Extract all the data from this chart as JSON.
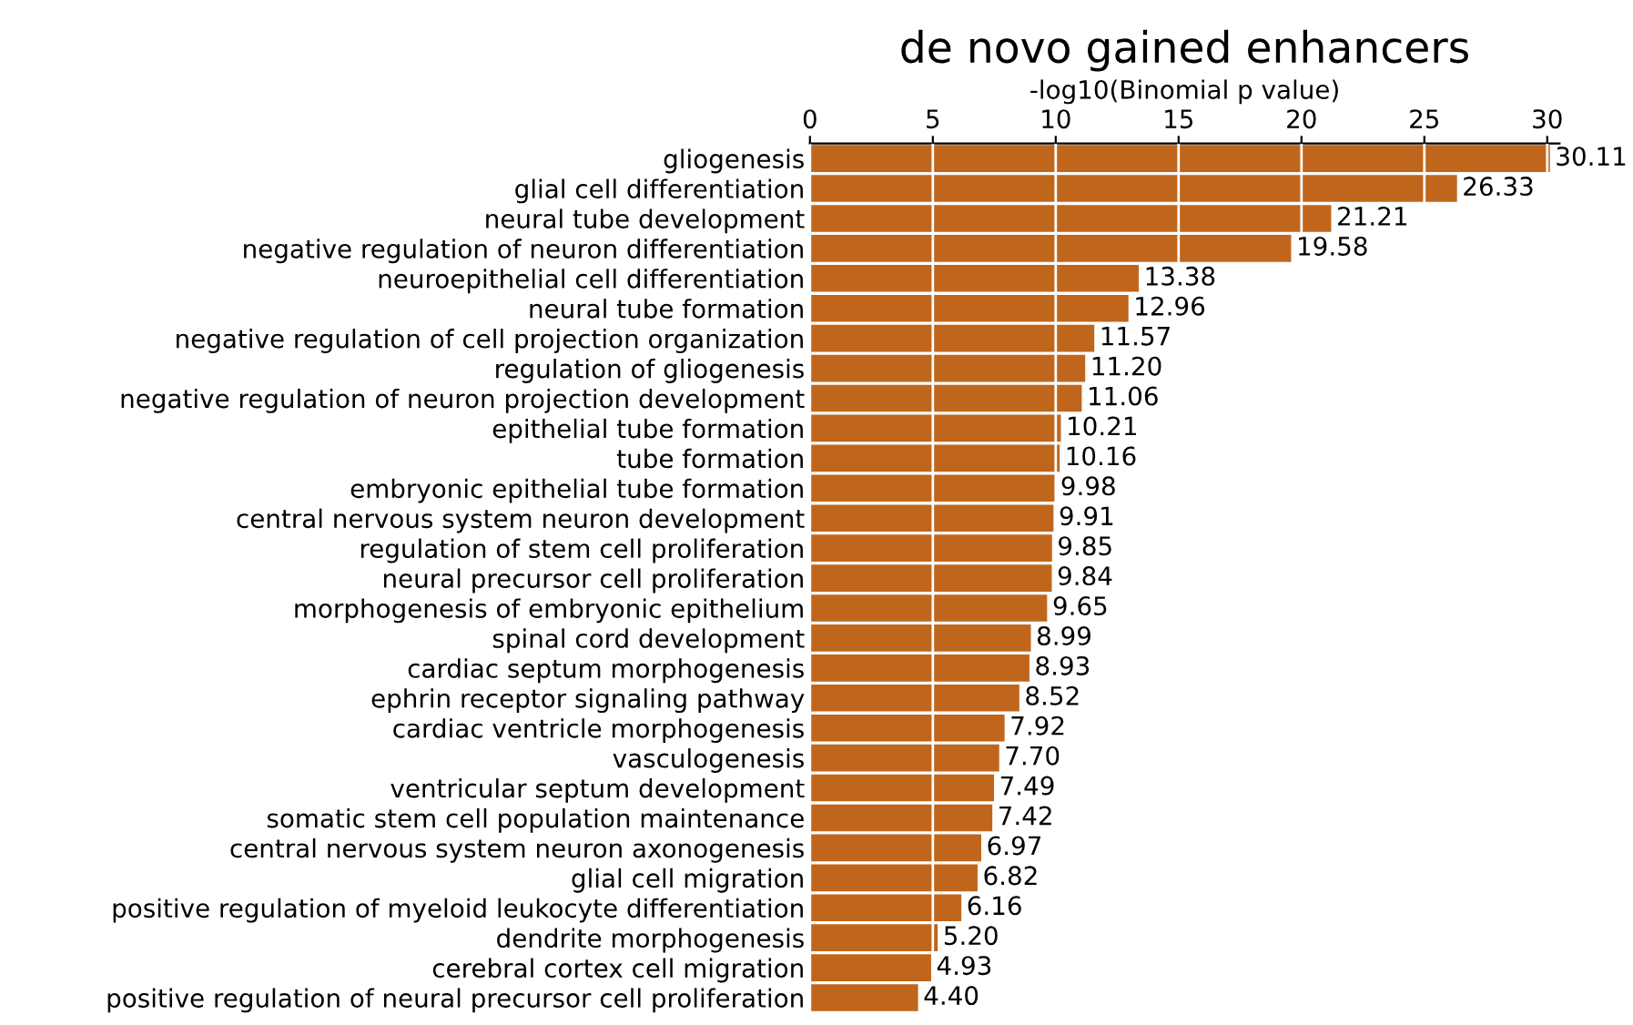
{
  "chart_data": {
    "type": "bar",
    "orientation": "horizontal",
    "title": "de novo gained enhancers",
    "xlabel": "-log10(Binomial p value)",
    "categories": [
      "gliogenesis",
      "glial cell differentiation",
      "neural tube development",
      "negative regulation of neuron differentiation",
      "neuroepithelial cell differentiation",
      "neural tube formation",
      "negative regulation of cell projection organization",
      "regulation of gliogenesis",
      "negative regulation of neuron projection development",
      "epithelial tube formation",
      "tube formation",
      "embryonic epithelial tube formation",
      "central nervous system neuron development",
      "regulation of stem cell proliferation",
      "neural precursor cell proliferation",
      "morphogenesis of embryonic epithelium",
      "spinal cord development",
      "cardiac septum morphogenesis",
      "ephrin receptor signaling pathway",
      "cardiac ventricle morphogenesis",
      "vasculogenesis",
      "ventricular septum development",
      "somatic stem cell population maintenance",
      "central nervous system neuron axonogenesis",
      "glial cell migration",
      "positive regulation of myeloid leukocyte differentiation",
      "dendrite morphogenesis",
      "cerebral cortex cell migration",
      "positive regulation of neural precursor cell proliferation"
    ],
    "values": [
      30.11,
      26.33,
      21.21,
      19.58,
      13.38,
      12.96,
      11.57,
      11.2,
      11.06,
      10.21,
      10.16,
      9.98,
      9.91,
      9.85,
      9.84,
      9.65,
      8.99,
      8.93,
      8.52,
      7.92,
      7.7,
      7.49,
      7.42,
      6.97,
      6.82,
      6.16,
      5.2,
      4.93,
      4.4
    ],
    "value_labels": [
      "30.11",
      "26.33",
      "21.21",
      "19.58",
      "13.38",
      "12.96",
      "11.57",
      "11.20",
      "11.06",
      "10.21",
      "10.16",
      "9.98",
      "9.91",
      "9.85",
      "9.84",
      "9.65",
      "8.99",
      "8.93",
      "8.52",
      "7.92",
      "7.70",
      "7.49",
      "7.42",
      "6.97",
      "6.82",
      "6.16",
      "5.20",
      "4.93",
      "4.40"
    ],
    "color": "#c0661c",
    "xlim": [
      0,
      30.5
    ],
    "xticks": [
      0,
      5,
      10,
      15,
      20,
      25,
      30
    ],
    "grid": "x"
  }
}
